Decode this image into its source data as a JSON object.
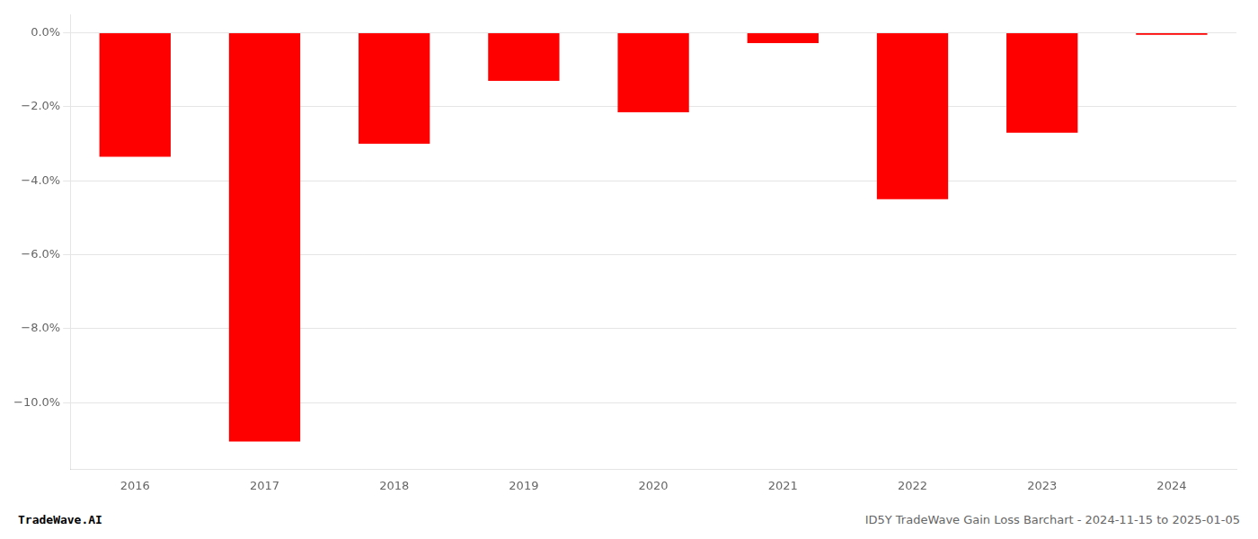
{
  "chart_data": {
    "type": "bar",
    "categories": [
      "2016",
      "2017",
      "2018",
      "2019",
      "2020",
      "2021",
      "2022",
      "2023",
      "2024"
    ],
    "values": [
      -3.35,
      -11.05,
      -3.0,
      -1.3,
      -2.15,
      -0.28,
      -4.5,
      -2.7,
      -0.05
    ],
    "color": "#ff0000",
    "ylim": [
      -11.8,
      0.5
    ],
    "yticks": [
      {
        "value": 0.0,
        "label": "0.0%"
      },
      {
        "value": -2.0,
        "label": "−2.0%"
      },
      {
        "value": -4.0,
        "label": "−4.0%"
      },
      {
        "value": -6.0,
        "label": "−6.0%"
      },
      {
        "value": -8.0,
        "label": "−8.0%"
      },
      {
        "value": -10.0,
        "label": "−10.0%"
      }
    ],
    "grid": true,
    "annotations": [
      "TradeWave.AI",
      "ID5Y TradeWave Gain Loss Barchart - 2024-11-15 to 2025-01-05"
    ]
  }
}
